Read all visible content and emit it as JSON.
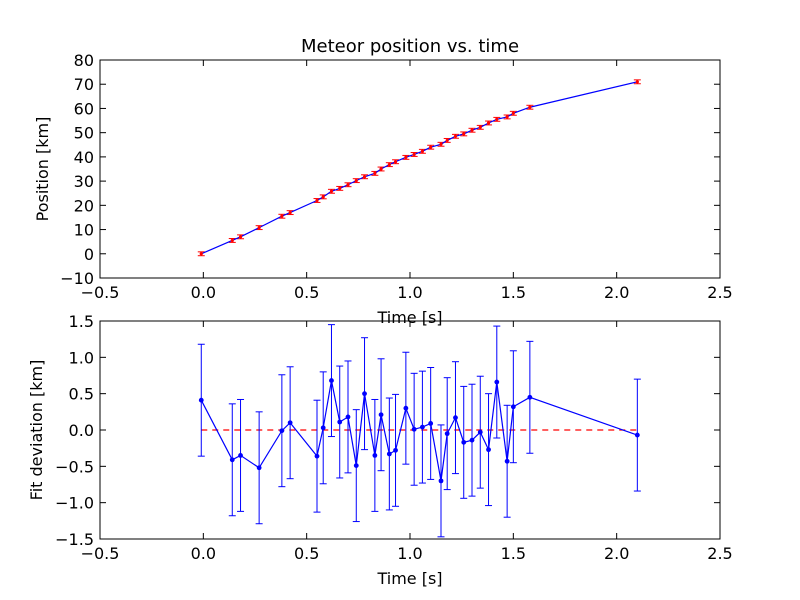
{
  "chart_data": [
    {
      "type": "line",
      "title": "Meteor position vs. time",
      "xlabel": "Time [s]",
      "ylabel": "Position [km]",
      "xlim": [
        -0.5,
        2.5
      ],
      "ylim": [
        -10,
        80
      ],
      "xticks": [
        "−0.5",
        "0.0",
        "0.5",
        "1.0",
        "1.5",
        "2.0",
        "2.5"
      ],
      "yticks": [
        "−10",
        "0",
        "10",
        "20",
        "30",
        "40",
        "50",
        "60",
        "70",
        "80"
      ],
      "grid": false,
      "line_color": "#0000ff",
      "point_color": "#ff0000",
      "x": [
        -0.01,
        0.14,
        0.18,
        0.27,
        0.38,
        0.42,
        0.55,
        0.58,
        0.62,
        0.66,
        0.7,
        0.74,
        0.78,
        0.83,
        0.86,
        0.9,
        0.93,
        0.98,
        1.02,
        1.06,
        1.1,
        1.15,
        1.18,
        1.22,
        1.26,
        1.3,
        1.34,
        1.38,
        1.42,
        1.47,
        1.5,
        1.58,
        2.1
      ],
      "y": [
        0.0,
        5.5,
        7.0,
        10.8,
        15.5,
        17.0,
        22.0,
        23.5,
        25.8,
        27.0,
        28.5,
        30.2,
        31.8,
        33.2,
        35.0,
        36.8,
        38.0,
        39.8,
        41.0,
        42.3,
        44.0,
        45.2,
        46.8,
        48.5,
        49.5,
        51.0,
        52.2,
        54.0,
        55.5,
        56.5,
        58.0,
        60.5,
        71.0
      ],
      "yerr": 0.8
    },
    {
      "type": "line",
      "title": "",
      "xlabel": "Time [s]",
      "ylabel": "Fit deviation [km]",
      "xlim": [
        -0.5,
        2.5
      ],
      "ylim": [
        -1.5,
        1.5
      ],
      "xticks": [
        "−0.5",
        "0.0",
        "0.5",
        "1.0",
        "1.5",
        "2.0",
        "2.5"
      ],
      "yticks": [
        "−1.5",
        "−1.0",
        "−0.5",
        "0.0",
        "0.5",
        "1.0",
        "1.5"
      ],
      "grid": false,
      "line_color": "#0000ff",
      "reference_line": {
        "y": 0.0,
        "color": "#ff0000",
        "style": "dashed"
      },
      "x": [
        -0.01,
        0.14,
        0.18,
        0.27,
        0.38,
        0.42,
        0.55,
        0.58,
        0.62,
        0.66,
        0.7,
        0.74,
        0.78,
        0.83,
        0.86,
        0.9,
        0.93,
        0.98,
        1.02,
        1.06,
        1.1,
        1.15,
        1.18,
        1.22,
        1.26,
        1.3,
        1.34,
        1.38,
        1.42,
        1.47,
        1.5,
        1.58,
        2.1
      ],
      "y": [
        0.41,
        -0.41,
        -0.35,
        -0.52,
        -0.01,
        0.1,
        -0.36,
        0.03,
        0.68,
        0.11,
        0.18,
        -0.49,
        0.5,
        -0.35,
        0.21,
        -0.33,
        -0.28,
        0.3,
        0.01,
        0.04,
        0.09,
        -0.7,
        -0.05,
        0.17,
        -0.17,
        -0.14,
        -0.03,
        -0.27,
        0.66,
        -0.43,
        0.32,
        0.45,
        -0.07
      ],
      "yerr": 0.77
    }
  ]
}
